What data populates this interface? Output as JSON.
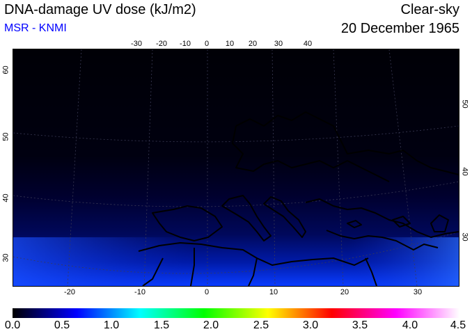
{
  "header": {
    "title": "DNA-damage UV dose (kJ/m2)",
    "source": "MSR - KNMI",
    "condition": "Clear-sky",
    "date": "20 December 1965"
  },
  "axes": {
    "top_lon_labels": [
      "-30",
      "-20",
      "-10",
      "0",
      "10",
      "20",
      "30",
      "40"
    ],
    "bottom_lon_labels": [
      "-20",
      "-10",
      "0",
      "10",
      "20",
      "30"
    ],
    "left_lat_labels": [
      "60",
      "50",
      "40",
      "30"
    ],
    "right_lat_labels": [
      "50",
      "40",
      "30"
    ]
  },
  "colorbar": {
    "labels": [
      "0.0",
      "0.5",
      "1.0",
      "1.5",
      "2.0",
      "2.5",
      "3.0",
      "3.5",
      "4.0",
      "4.5"
    ],
    "colors": [
      "#000000",
      "#0000ff",
      "#00ffff",
      "#00ff00",
      "#ffff00",
      "#ff0000",
      "#ff00ff",
      "#ffffff"
    ]
  },
  "map": {
    "colors": {
      "dark": "#000010",
      "mid": "#000a6a",
      "bright": "#0a3cff"
    }
  }
}
